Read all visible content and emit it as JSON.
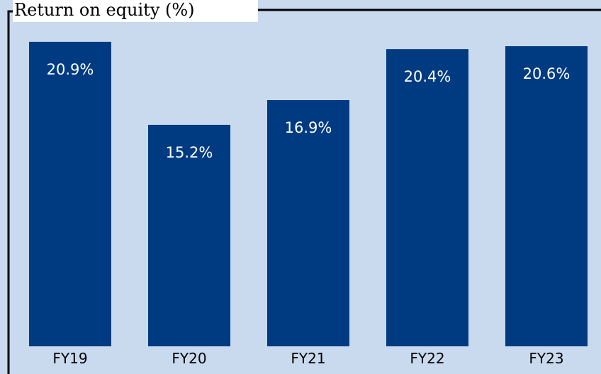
{
  "chart_data": {
    "type": "bar",
    "title": "Return on equity (%)",
    "categories": [
      "FY19",
      "FY20",
      "FY21",
      "FY22",
      "FY23"
    ],
    "values": [
      20.9,
      15.2,
      16.9,
      20.4,
      20.6
    ],
    "value_labels": [
      "20.9%",
      "15.2%",
      "16.9%",
      "20.4%",
      "20.6%"
    ],
    "color": "#003b82",
    "ylim": [
      0,
      22.6
    ]
  }
}
